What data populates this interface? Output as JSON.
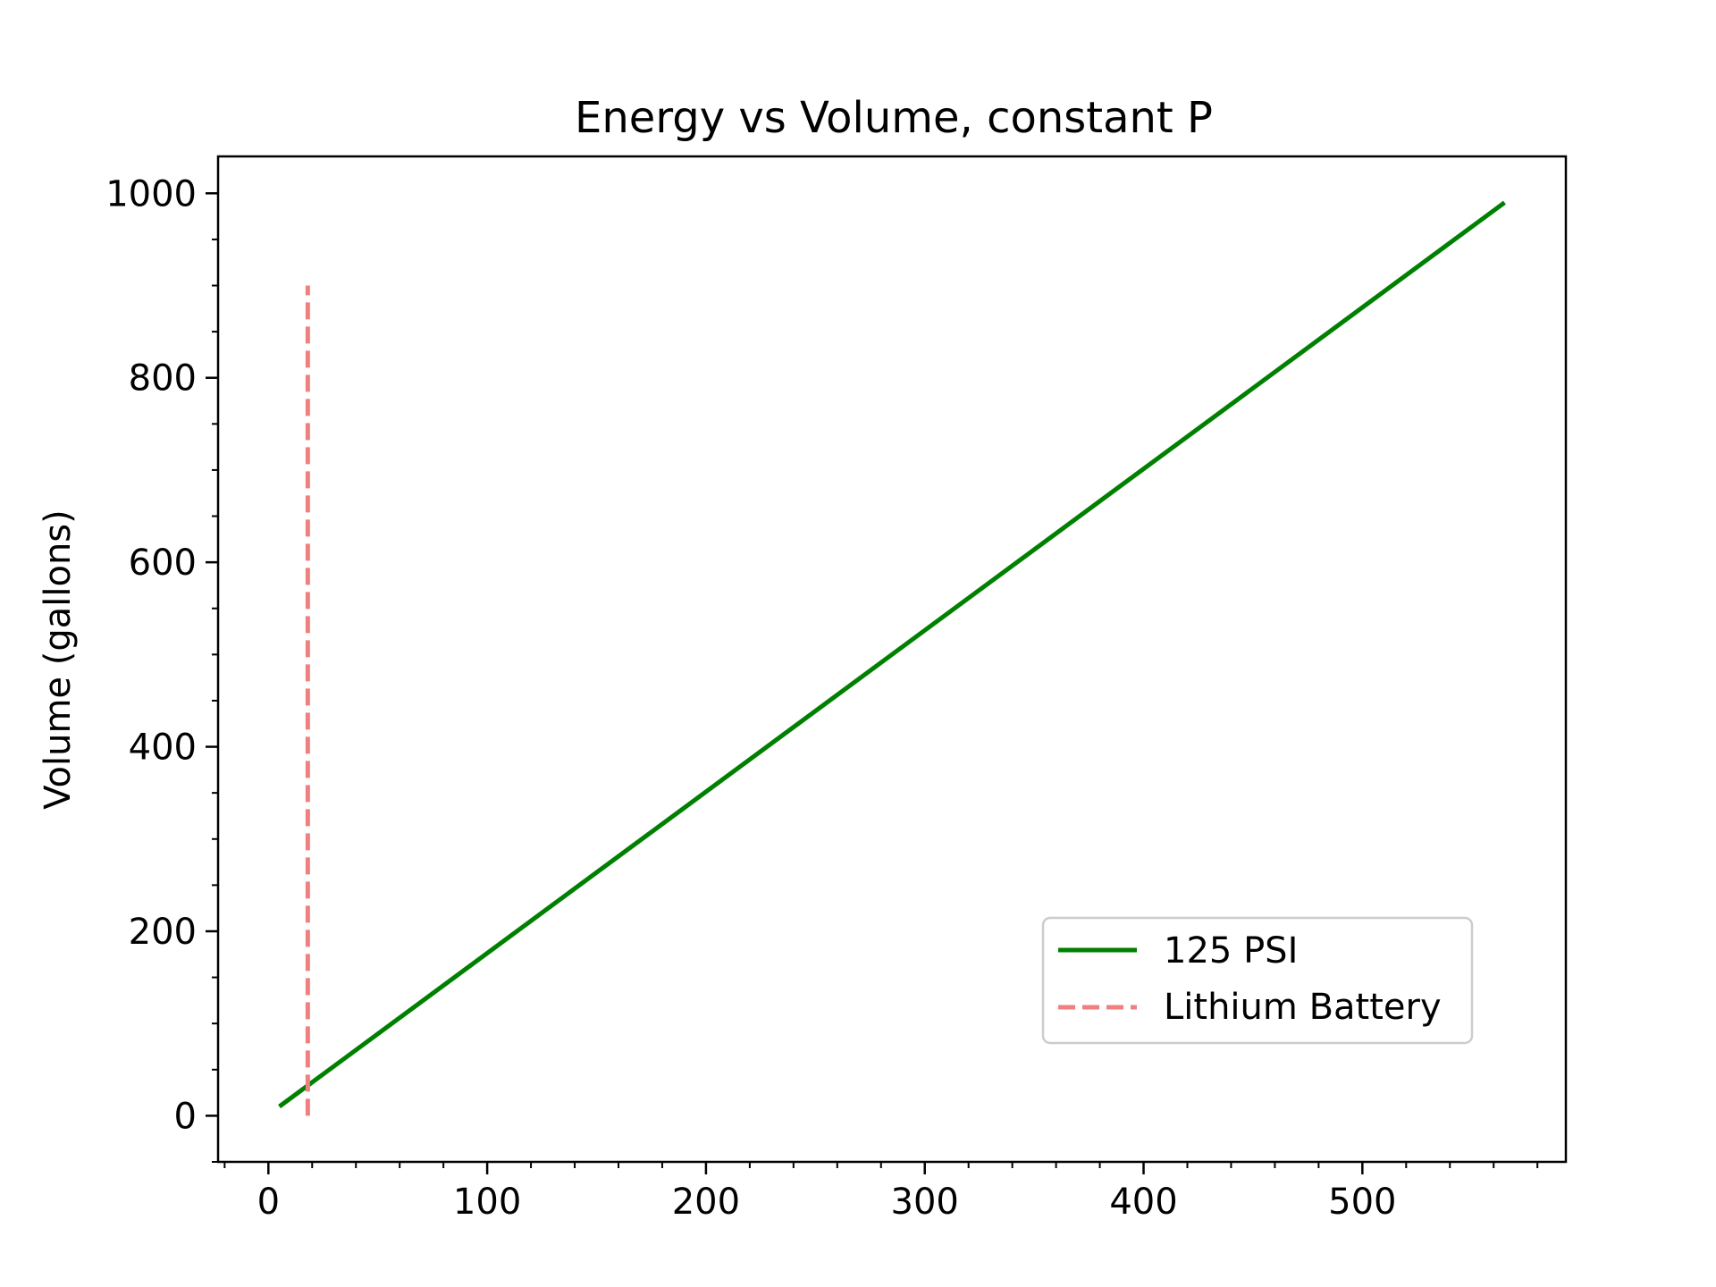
{
  "chart_data": {
    "type": "line",
    "title": "Energy vs Volume, constant P",
    "xlabel": "",
    "ylabel": "Volume (gallons)",
    "xlim": [
      -23,
      593
    ],
    "ylim": [
      -50,
      1040
    ],
    "x_ticks": [
      0,
      100,
      200,
      300,
      400,
      500
    ],
    "x_tick_labels": [
      "0",
      "100",
      "200",
      "300",
      "400",
      "500"
    ],
    "y_ticks": [
      0,
      200,
      400,
      600,
      800,
      1000
    ],
    "y_tick_labels": [
      "0",
      "200",
      "400",
      "600",
      "800",
      "1000"
    ],
    "x_minor_step": 20,
    "y_minor_step": 50,
    "grid": false,
    "legend_position": "lower-right",
    "series": [
      {
        "name": "125 PSI",
        "style": "solid",
        "color": "#008000",
        "x": [
          5,
          565
        ],
        "y": [
          10,
          990
        ]
      },
      {
        "name": "Lithium Battery",
        "style": "dashed",
        "color": "#f08080",
        "x": [
          18,
          18
        ],
        "y": [
          0,
          900
        ]
      }
    ]
  }
}
